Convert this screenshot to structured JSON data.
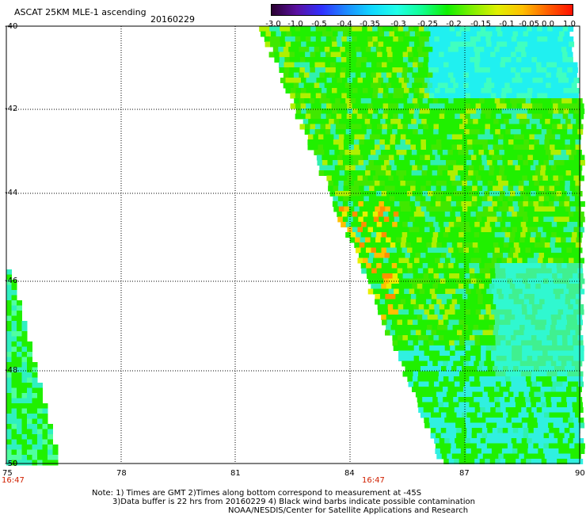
{
  "header": {
    "title": "ASCAT 25KM MLE-1 ascending",
    "date": "20160229"
  },
  "colorbar": {
    "tick_labels": [
      "-3.0",
      "-1.0",
      "-0.5",
      "-0.4",
      "-0.35",
      "-0.3",
      "-0.25",
      "-0.2",
      "-0.15",
      "-0.1",
      "-0.05",
      "0.0",
      "1.0"
    ],
    "colors": [
      "#2a0030",
      "#5a10a0",
      "#3030ff",
      "#1c8cff",
      "#10d8ff",
      "#20ffe8",
      "#10ff90",
      "#10f000",
      "#80f000",
      "#e0f000",
      "#ffc000",
      "#ff6000",
      "#ff1000"
    ]
  },
  "map": {
    "lon_labels": [
      "75",
      "78",
      "81",
      "84",
      "87",
      "90"
    ],
    "lat_labels": [
      "-40",
      "-42",
      "-44",
      "-46",
      "-48",
      "-50"
    ],
    "time_labels": [
      "16:47",
      "16:47"
    ]
  },
  "notes": {
    "line1": "Note: 1) Times are GMT 2)Times along bottom correspond to measurement at -45S",
    "line2": "3)Data buffer is 22 hrs from 20160229 4) Black wind barbs indicate possible contamination",
    "line3": "NOAA/NESDIS/Center for Satellite Applications and Research"
  }
}
